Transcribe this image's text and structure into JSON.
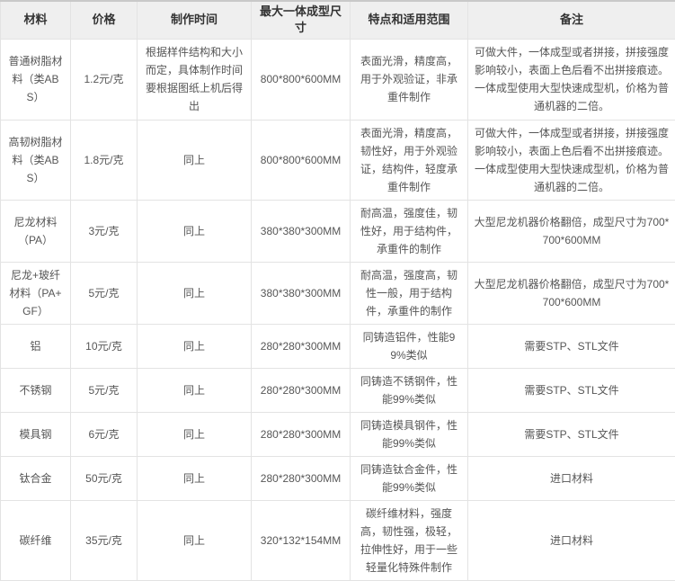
{
  "table": {
    "columns": [
      {
        "key": "material",
        "label": "材料"
      },
      {
        "key": "price",
        "label": "价格"
      },
      {
        "key": "time",
        "label": "制作时间"
      },
      {
        "key": "size",
        "label": "最大一体成型尺寸"
      },
      {
        "key": "features",
        "label": "特点和适用范围"
      },
      {
        "key": "notes",
        "label": "备注"
      }
    ],
    "rows": [
      {
        "material": "普通树脂材料（类ABS）",
        "price": "1.2元/克",
        "time": "根据样件结构和大小而定，具体制作时间要根据图纸上机后得出",
        "size": "800*800*600MM",
        "features": "表面光滑，精度高，用于外观验证，非承重件制作",
        "notes": "可做大件，一体成型或者拼接，拼接强度影响较小，表面上色后看不出拼接痕迹。一体成型使用大型快速成型机，价格为普通机器的二倍。"
      },
      {
        "material": "高韧树脂材料（类ABS）",
        "price": "1.8元/克",
        "time": "同上",
        "size": "800*800*600MM",
        "features": "表面光滑，精度高，韧性好，用于外观验证，结构件，轻度承重件制作",
        "notes": "可做大件，一体成型或者拼接，拼接强度影响较小，表面上色后看不出拼接痕迹。一体成型使用大型快速成型机，价格为普通机器的二倍。"
      },
      {
        "material": "尼龙材料（PA）",
        "price": "3元/克",
        "time": "同上",
        "size": "380*380*300MM",
        "features": "耐高温，强度佳，韧性好，用于结构件，承重件的制作",
        "notes": "大型尼龙机器价格翻倍，成型尺寸为700*700*600MM"
      },
      {
        "material": "尼龙+玻纤材料（PA+GF）",
        "price": "5元/克",
        "time": "同上",
        "size": "380*380*300MM",
        "features": "耐高温，强度高，韧性一般，用于结构件，承重件的制作",
        "notes": "大型尼龙机器价格翻倍，成型尺寸为700*700*600MM"
      },
      {
        "material": "铝",
        "price": "10元/克",
        "time": "同上",
        "size": "280*280*300MM",
        "features": "同铸造铝件，性能99%类似",
        "notes": "需要STP、STL文件"
      },
      {
        "material": "不锈钢",
        "price": "5元/克",
        "time": "同上",
        "size": "280*280*300MM",
        "features": "同铸造不锈钢件，性能99%类似",
        "notes": "需要STP、STL文件"
      },
      {
        "material": "模具钢",
        "price": "6元/克",
        "time": "同上",
        "size": "280*280*300MM",
        "features": "同铸造模具钢件，性能99%类似",
        "notes": "需要STP、STL文件"
      },
      {
        "material": "钛合金",
        "price": "50元/克",
        "time": "同上",
        "size": "280*280*300MM",
        "features": "同铸造钛合金件，性能99%类似",
        "notes": "进口材料"
      },
      {
        "material": "碳纤维",
        "price": "35元/克",
        "time": "同上",
        "size": "320*132*154MM",
        "features": "碳纤维材料，强度高，韧性强，极轻，拉伸性好，用于一些轻量化特殊件制作",
        "notes": "进口材料"
      }
    ]
  },
  "colors": {
    "header_bg": "#efefef",
    "header_text": "#333333",
    "body_text": "#565656",
    "border": "#e3e3e3",
    "outer_top_border": "#c9c9c9"
  }
}
